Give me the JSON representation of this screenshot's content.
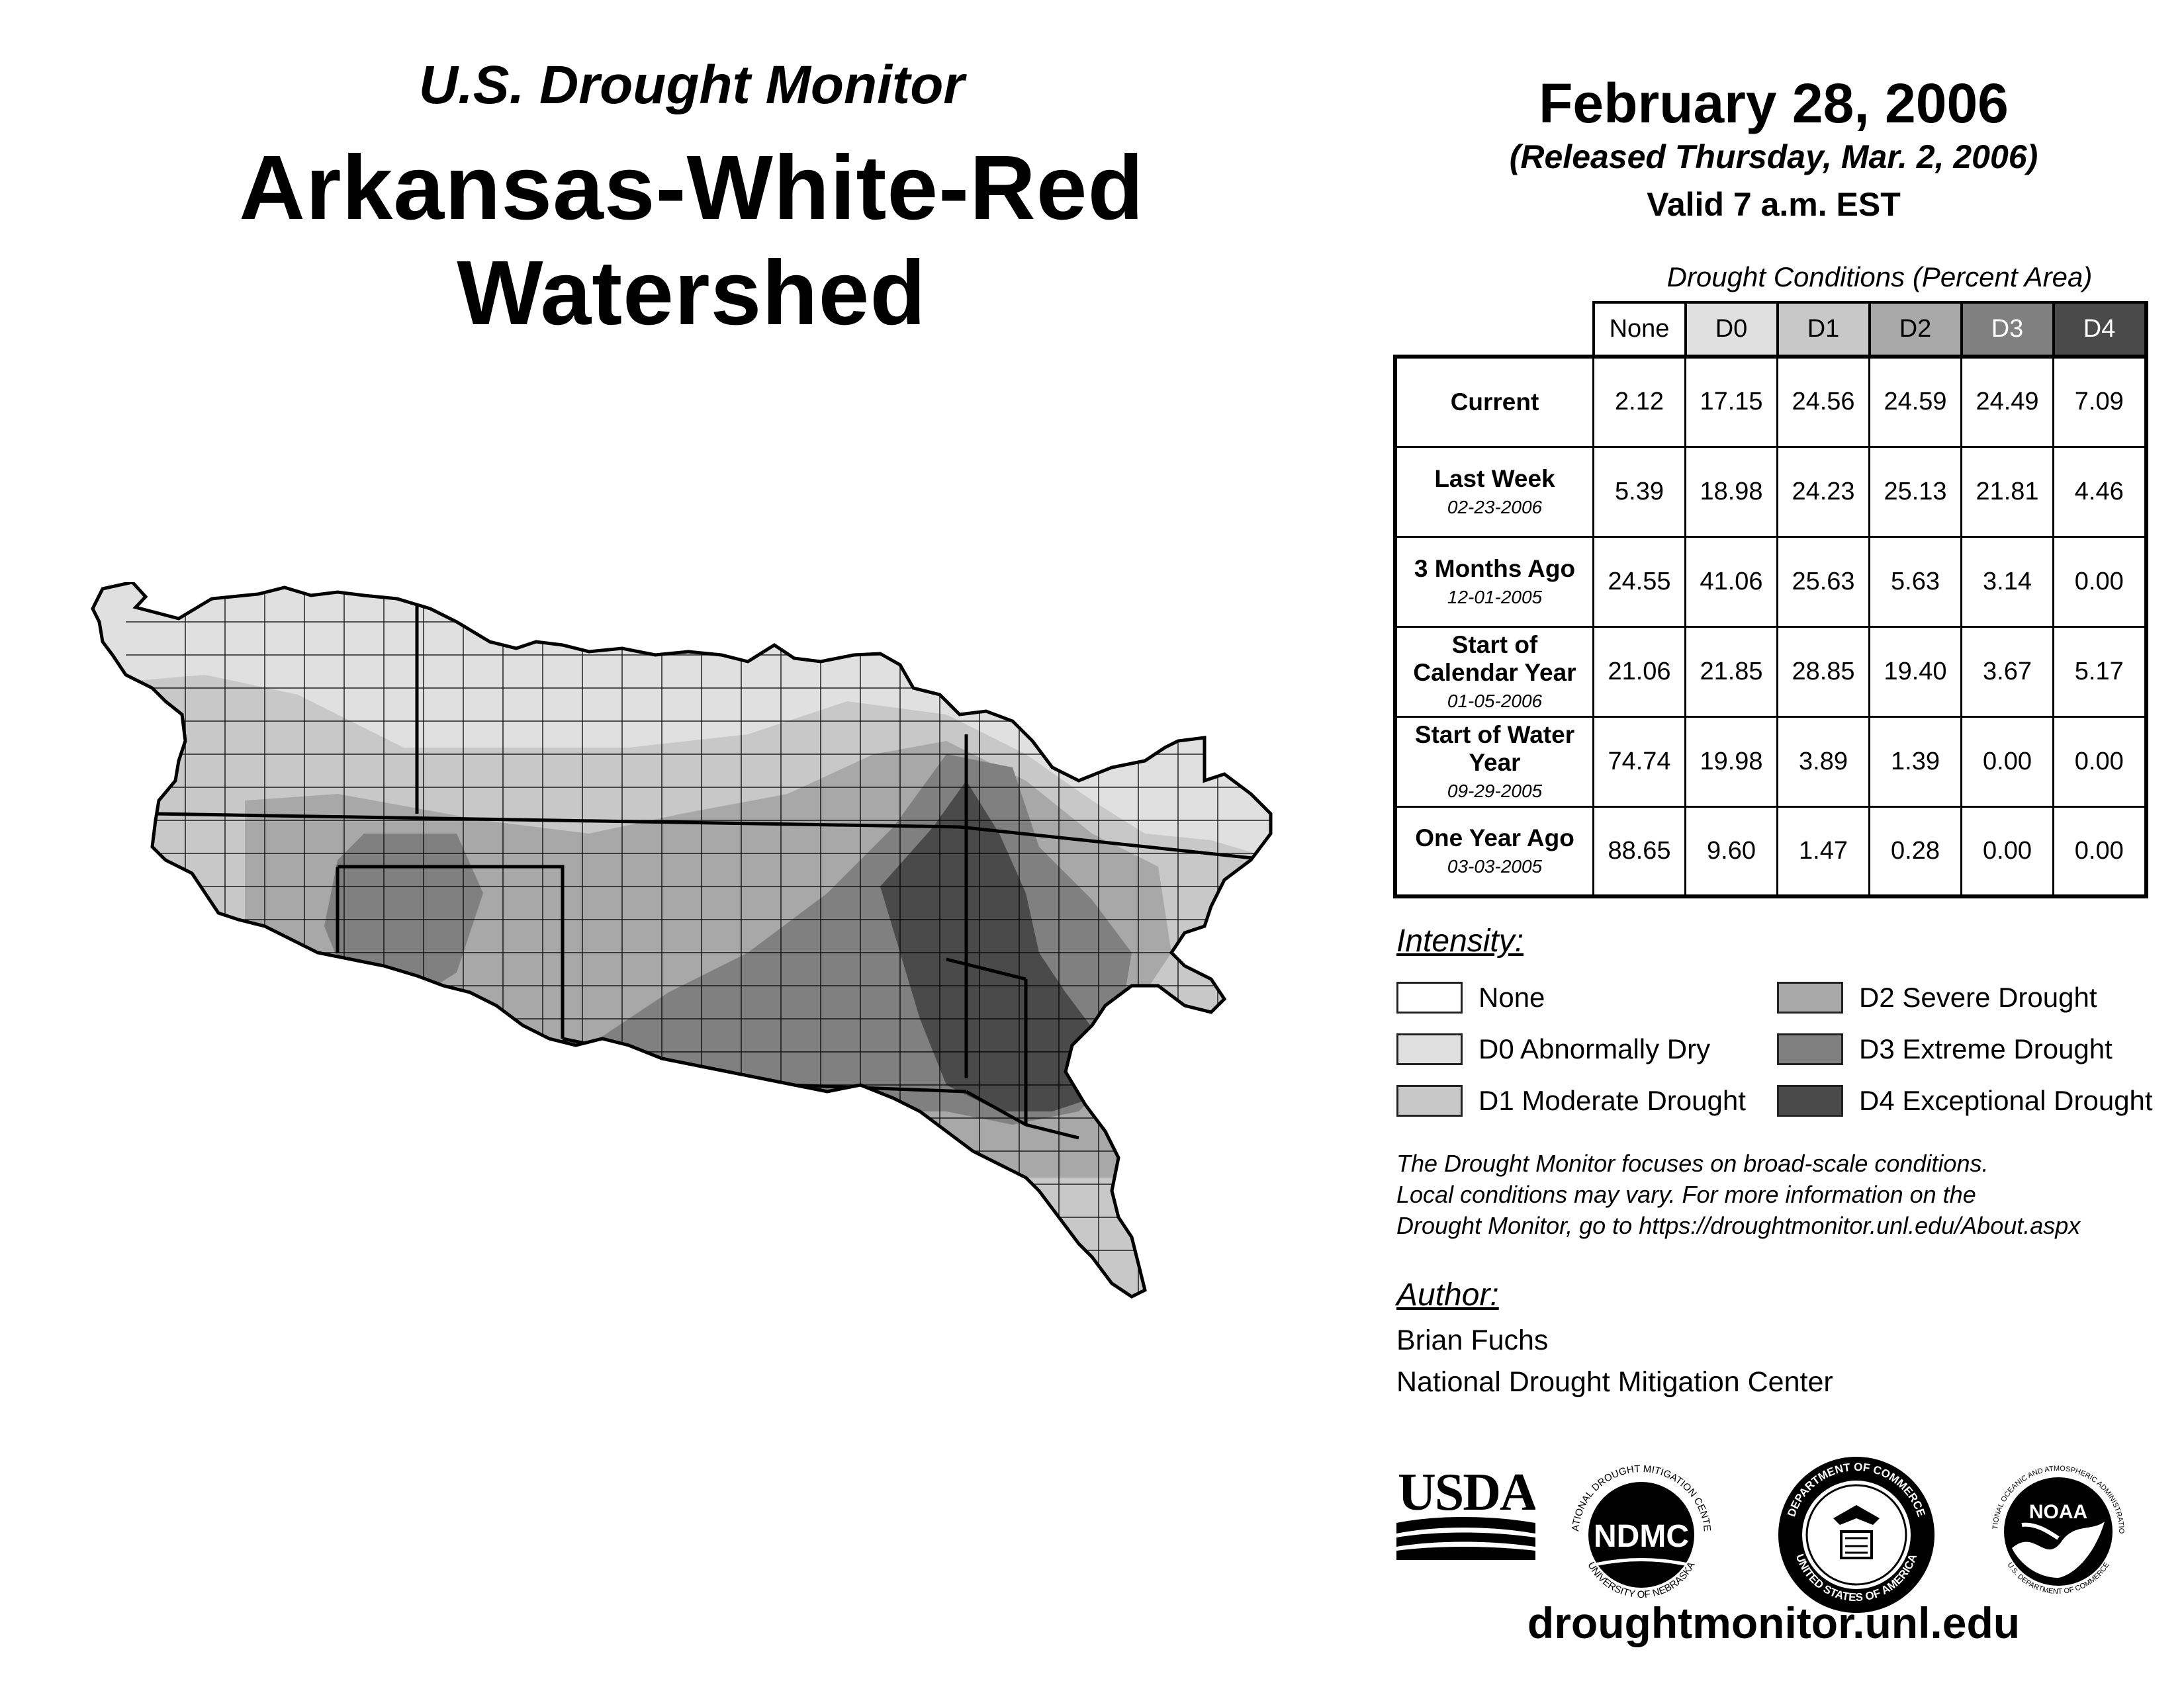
{
  "header": {
    "subtitle": "U.S. Drought Monitor",
    "title": "Arkansas-White-Red Watershed",
    "date": "February 28, 2006",
    "released": "(Released Thursday, Mar. 2, 2006)",
    "valid": "Valid 7 a.m. EST"
  },
  "table": {
    "caption": "Drought Conditions (Percent Area)",
    "columns": [
      "None",
      "D0",
      "D1",
      "D2",
      "D3",
      "D4"
    ],
    "column_colors": [
      "#ffffff",
      "#e0e0e0",
      "#c8c8c8",
      "#a8a8a8",
      "#808080",
      "#4a4a4a"
    ],
    "rows": [
      {
        "label": "Current",
        "date": "",
        "values": [
          "2.12",
          "17.15",
          "24.56",
          "24.59",
          "24.49",
          "7.09"
        ]
      },
      {
        "label": "Last Week",
        "date": "02-23-2006",
        "values": [
          "5.39",
          "18.98",
          "24.23",
          "25.13",
          "21.81",
          "4.46"
        ]
      },
      {
        "label": "3 Months Ago",
        "date": "12-01-2005",
        "values": [
          "24.55",
          "41.06",
          "25.63",
          "5.63",
          "3.14",
          "0.00"
        ]
      },
      {
        "label": "Start of Calendar Year",
        "date": "01-05-2006",
        "values": [
          "21.06",
          "21.85",
          "28.85",
          "19.40",
          "3.67",
          "5.17"
        ]
      },
      {
        "label": "Start of Water Year",
        "date": "09-29-2005",
        "values": [
          "74.74",
          "19.98",
          "3.89",
          "1.39",
          "0.00",
          "0.00"
        ]
      },
      {
        "label": "One Year Ago",
        "date": "03-03-2005",
        "values": [
          "88.65",
          "9.60",
          "1.47",
          "0.28",
          "0.00",
          "0.00"
        ]
      }
    ]
  },
  "legend": {
    "title": "Intensity:",
    "items": [
      {
        "label": "None",
        "color": "#ffffff"
      },
      {
        "label": "D0 Abnormally Dry",
        "color": "#e0e0e0"
      },
      {
        "label": "D1 Moderate Drought",
        "color": "#c8c8c8"
      },
      {
        "label": "D2 Severe Drought",
        "color": "#a8a8a8"
      },
      {
        "label": "D3 Extreme Drought",
        "color": "#808080"
      },
      {
        "label": "D4 Exceptional Drought",
        "color": "#4a4a4a"
      }
    ]
  },
  "disclaimer": [
    "The Drought Monitor focuses on broad-scale conditions.",
    "Local conditions may vary. For more information on the",
    "Drought Monitor, go to https://droughtmonitor.unl.edu/About.aspx"
  ],
  "author": {
    "title": "Author:",
    "name": "Brian Fuchs",
    "org": "National Drought Mitigation Center"
  },
  "logos": {
    "usda": "USDA",
    "ndmc": "NDMC",
    "ndmc_ring_top": "NATIONAL DROUGHT MITIGATION CENTER",
    "ndmc_ring_bottom": "UNIVERSITY OF NEBRASKA",
    "doc_ring_top": "DEPARTMENT OF COMMERCE",
    "doc_ring_bottom": "UNITED STATES OF AMERICA",
    "noaa": "NOAA",
    "noaa_ring_top": "NATIONAL OCEANIC AND ATMOSPHERIC ADMINISTRATION",
    "noaa_ring_bottom": "U.S. DEPARTMENT OF COMMERCE"
  },
  "footer_url": "droughtmonitor.unl.edu"
}
